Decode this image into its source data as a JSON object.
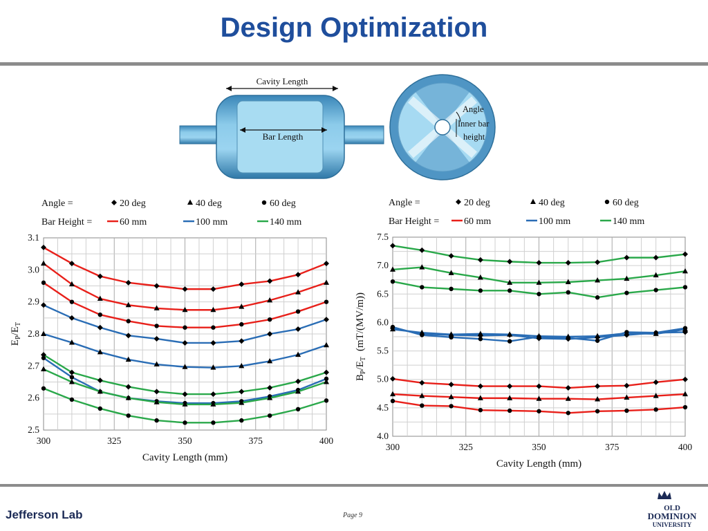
{
  "slide": {
    "title": "Design Optimization",
    "footer_page": "Page 9",
    "footer_logo_left": "Jefferson Lab",
    "footer_logo_right": [
      "OLD",
      "DOMINION",
      "UNIVERSITY"
    ]
  },
  "diagram": {
    "cavity_length_label": "Cavity Length",
    "bar_length_label": "Bar Length",
    "angle_label": "Angle",
    "inner_bar_height_label": [
      "Inner bar",
      "height"
    ]
  },
  "legend": {
    "angle_prefix": "Angle =",
    "angles": [
      "20 deg",
      "40 deg",
      "60 deg"
    ],
    "bar_height_prefix": "Bar Height =",
    "bar_heights": [
      "60 mm",
      "100 mm",
      "140 mm"
    ]
  },
  "colors": {
    "60 mm": "#e8201a",
    "100 mm": "#2a6db5",
    "140 mm": "#2aa84a",
    "title": "#1f4e9c"
  },
  "chart_data": [
    {
      "type": "line",
      "xlabel": "Cavity Length (mm)",
      "ylabel": "EP/ET",
      "ylabel_main": "E",
      "ylabel_sub1": "P",
      "ylabel_sep": "/E",
      "ylabel_sub2": "T",
      "x": [
        300,
        310,
        320,
        330,
        340,
        350,
        360,
        370,
        380,
        390,
        400
      ],
      "xlim": [
        300,
        400
      ],
      "ylim": [
        2.5,
        3.1
      ],
      "xticks": [
        "300",
        "325",
        "350",
        "375",
        "400"
      ],
      "yticks": [
        "2.5",
        "2.6",
        "2.7",
        "2.8",
        "2.9",
        "3.0",
        "3.1"
      ],
      "grid": true,
      "series": [
        {
          "name": "60 mm, 20 deg",
          "bar": "60 mm",
          "marker": "diamond",
          "values": [
            3.07,
            3.02,
            2.98,
            2.96,
            2.95,
            2.94,
            2.94,
            2.955,
            2.965,
            2.985,
            3.02
          ]
        },
        {
          "name": "60 mm, 40 deg",
          "bar": "60 mm",
          "marker": "triangle",
          "values": [
            3.02,
            2.955,
            2.91,
            2.89,
            2.88,
            2.875,
            2.875,
            2.885,
            2.905,
            2.93,
            2.96
          ]
        },
        {
          "name": "60 mm, 60 deg",
          "bar": "60 mm",
          "marker": "circle",
          "values": [
            2.96,
            2.9,
            2.86,
            2.84,
            2.825,
            2.82,
            2.82,
            2.83,
            2.845,
            2.87,
            2.9
          ]
        },
        {
          "name": "100 mm, 20 deg",
          "bar": "100 mm",
          "marker": "diamond",
          "values": [
            2.89,
            2.85,
            2.82,
            2.795,
            2.785,
            2.772,
            2.772,
            2.778,
            2.8,
            2.815,
            2.845
          ]
        },
        {
          "name": "100 mm, 40 deg",
          "bar": "100 mm",
          "marker": "triangle",
          "values": [
            2.8,
            2.773,
            2.743,
            2.72,
            2.705,
            2.697,
            2.695,
            2.7,
            2.715,
            2.735,
            2.765
          ]
        },
        {
          "name": "100 mm, 60 deg",
          "bar": "100 mm",
          "marker": "circle",
          "values": [
            2.725,
            2.665,
            2.62,
            2.6,
            2.59,
            2.584,
            2.584,
            2.59,
            2.605,
            2.625,
            2.66
          ]
        },
        {
          "name": "140 mm, 20 deg",
          "bar": "140 mm",
          "marker": "diamond",
          "values": [
            2.735,
            2.68,
            2.655,
            2.635,
            2.62,
            2.612,
            2.612,
            2.62,
            2.632,
            2.652,
            2.68
          ]
        },
        {
          "name": "140 mm, 40 deg",
          "bar": "140 mm",
          "marker": "triangle",
          "values": [
            2.69,
            2.65,
            2.62,
            2.6,
            2.587,
            2.58,
            2.58,
            2.585,
            2.6,
            2.62,
            2.65
          ]
        },
        {
          "name": "140 mm, 60 deg",
          "bar": "140 mm",
          "marker": "circle",
          "values": [
            2.63,
            2.595,
            2.567,
            2.545,
            2.53,
            2.523,
            2.523,
            2.53,
            2.545,
            2.565,
            2.592
          ]
        }
      ]
    },
    {
      "type": "line",
      "xlabel": "Cavity Length (mm)",
      "ylabel": "BP/ET (mT/(MV/m))",
      "ylabel_main": "B",
      "ylabel_sub1": "P",
      "ylabel_sep": "/E",
      "ylabel_sub2": "T",
      "ylabel_units": "(mT/(MV/m))",
      "x": [
        300,
        310,
        320,
        330,
        340,
        350,
        360,
        370,
        380,
        390,
        400
      ],
      "xlim": [
        300,
        400
      ],
      "ylim": [
        4.0,
        7.5
      ],
      "xticks": [
        "300",
        "325",
        "350",
        "375",
        "400"
      ],
      "yticks": [
        "4.0",
        "4.5",
        "5.0",
        "5.5",
        "6.0",
        "6.5",
        "7.0",
        "7.5"
      ],
      "grid": true,
      "series": [
        {
          "name": "140 mm, 20 deg",
          "bar": "140 mm",
          "marker": "diamond",
          "values": [
            7.35,
            7.27,
            7.17,
            7.1,
            7.07,
            7.05,
            7.05,
            7.06,
            7.14,
            7.14,
            7.2
          ]
        },
        {
          "name": "140 mm, 40 deg",
          "bar": "140 mm",
          "marker": "triangle",
          "values": [
            6.93,
            6.97,
            6.87,
            6.79,
            6.7,
            6.7,
            6.71,
            6.74,
            6.77,
            6.83,
            6.9
          ]
        },
        {
          "name": "140 mm, 60 deg",
          "bar": "140 mm",
          "marker": "circle",
          "values": [
            6.72,
            6.62,
            6.59,
            6.56,
            6.56,
            6.5,
            6.53,
            6.44,
            6.52,
            6.57,
            6.62
          ]
        },
        {
          "name": "100 mm, 20 deg",
          "bar": "100 mm",
          "marker": "diamond",
          "values": [
            5.9,
            5.8,
            5.78,
            5.77,
            5.78,
            5.72,
            5.71,
            5.74,
            5.78,
            5.82,
            5.83
          ]
        },
        {
          "name": "100 mm, 40 deg",
          "bar": "100 mm",
          "marker": "triangle",
          "values": [
            5.88,
            5.82,
            5.79,
            5.8,
            5.79,
            5.76,
            5.75,
            5.76,
            5.81,
            5.8,
            5.88
          ]
        },
        {
          "name": "100 mm, 60 deg",
          "bar": "100 mm",
          "marker": "circle",
          "values": [
            5.92,
            5.78,
            5.74,
            5.71,
            5.67,
            5.75,
            5.73,
            5.68,
            5.83,
            5.82,
            5.9
          ]
        },
        {
          "name": "60 mm, 20 deg",
          "bar": "60 mm",
          "marker": "diamond",
          "values": [
            5.01,
            4.94,
            4.91,
            4.88,
            4.88,
            4.88,
            4.85,
            4.88,
            4.89,
            4.95,
            5.0
          ]
        },
        {
          "name": "60 mm, 40 deg",
          "bar": "60 mm",
          "marker": "triangle",
          "values": [
            4.74,
            4.71,
            4.69,
            4.67,
            4.67,
            4.66,
            4.66,
            4.65,
            4.68,
            4.71,
            4.74
          ]
        },
        {
          "name": "60 mm, 60 deg",
          "bar": "60 mm",
          "marker": "circle",
          "values": [
            4.62,
            4.54,
            4.53,
            4.46,
            4.45,
            4.44,
            4.41,
            4.44,
            4.45,
            4.47,
            4.51
          ]
        }
      ]
    }
  ]
}
